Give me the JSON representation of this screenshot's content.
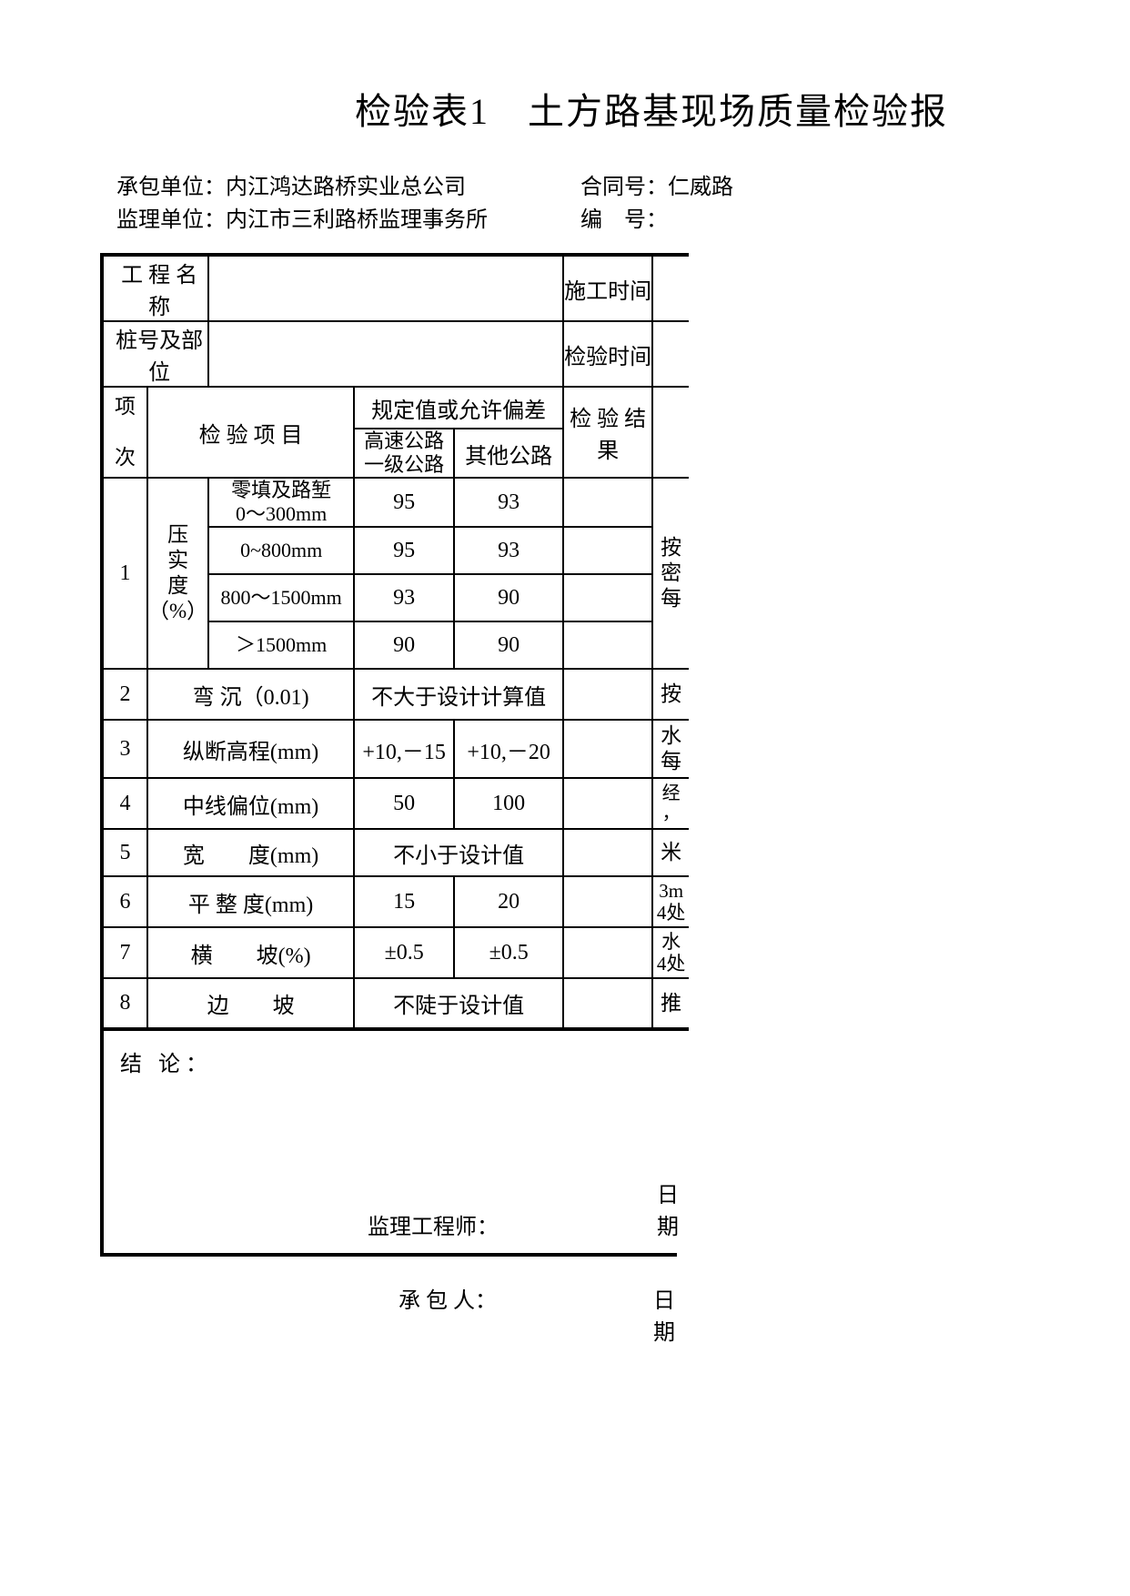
{
  "title": "检验表1　土方路基现场质量检验报",
  "meta": {
    "contractor_label": "承包单位：",
    "contractor": "内江鸿达路桥实业总公司",
    "supervisor_label": "监理单位：",
    "supervisor": "内江市三利路桥监理事务所",
    "contract_no_label": "合同号：",
    "contract_no": "仁威路",
    "serial_label": "编　号："
  },
  "header": {
    "project_name_label": "工 程 名 称",
    "construct_time_label": "施工时间",
    "stake_label": "桩号及部位",
    "inspect_time_label": "检验时间",
    "idx_top": "项",
    "idx_bot": "次",
    "item_label": "检 验 项 目",
    "spec_label": "规定值或允许偏差",
    "spec_col1": "高速公路\n一级公路",
    "spec_col2": "其他公路",
    "result_label": "检 验 结 果"
  },
  "rows": {
    "r1": {
      "idx": "1",
      "group_label": "压\n实\n度\n（%）",
      "sub1": "零填及路堑\n0～300mm",
      "sub2": "0~800mm",
      "sub3": "800～1500mm",
      "sub4": "＞1500mm",
      "v1a": "95",
      "v1b": "93",
      "v2a": "95",
      "v2b": "93",
      "v3a": "93",
      "v3b": "90",
      "v4a": "90",
      "v4b": "90",
      "note": "按\n密\n每"
    },
    "r2": {
      "idx": "2",
      "item": "弯 沉（0.01)",
      "spec": "不大于设计计算值",
      "note": "按"
    },
    "r3": {
      "idx": "3",
      "item": "纵断高程(mm)",
      "va": "+10,－15",
      "vb": "+10,－20",
      "note": "水\n每"
    },
    "r4": {
      "idx": "4",
      "item": "中线偏位(mm)",
      "va": "50",
      "vb": "100",
      "note": "经\n，"
    },
    "r5": {
      "idx": "5",
      "item": "宽　　度(mm)",
      "spec": "不小于设计值",
      "note": "米"
    },
    "r6": {
      "idx": "6",
      "item": "平 整 度(mm)",
      "va": "15",
      "vb": "20",
      "note": "3m\n4处"
    },
    "r7": {
      "idx": "7",
      "item": "横　　坡(%)",
      "va": "±0.5",
      "vb": "±0.5",
      "note": "水\n4处"
    },
    "r8": {
      "idx": "8",
      "item": "边　　坡",
      "spec": "不陡于设计值",
      "note": "推"
    }
  },
  "footer": {
    "conclusion_label": "结 论：",
    "sig1_label": "监理工程师：",
    "date_label": "日期",
    "sig2_label": "承 包 人："
  },
  "colors": {
    "bg": "#ffffff",
    "text": "#000000",
    "border": "#000000"
  }
}
